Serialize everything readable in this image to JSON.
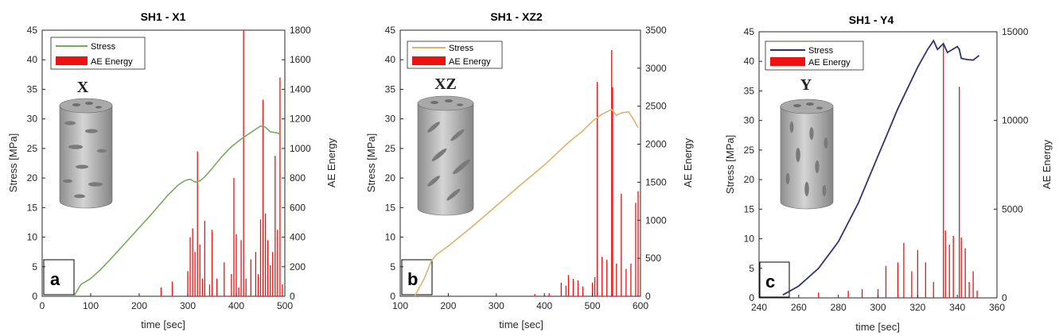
{
  "chart_data": [
    {
      "type": "line",
      "title": "SH1 - X1",
      "xlabel": "time [sec]",
      "ylabel": "Stress [MPa]",
      "y2label": "AE Energy",
      "xlim": [
        0,
        500
      ],
      "ylim": [
        0,
        45
      ],
      "y2lim": [
        0,
        1800
      ],
      "xticks": [
        "0",
        "100",
        "200",
        "300",
        "400",
        "500"
      ],
      "yticks": [
        "0",
        "5",
        "10",
        "15",
        "20",
        "25",
        "30",
        "35",
        "40",
        "45"
      ],
      "y2ticks": [
        "0",
        "200",
        "400",
        "600",
        "800",
        "1000",
        "1200",
        "1400",
        "1600",
        "1800"
      ],
      "legend": [
        "Stress",
        "AE Energy"
      ],
      "legend_position": "top-left",
      "panel_label": "a",
      "specimen_label": "X",
      "stress_color": "#77ac5c",
      "stress": {
        "x": [
          65,
          80,
          100,
          120,
          140,
          160,
          180,
          200,
          220,
          240,
          260,
          280,
          295,
          305,
          315,
          325,
          335,
          350,
          370,
          390,
          410,
          430,
          450,
          460,
          470,
          480,
          490
        ],
        "y": [
          0,
          2,
          3,
          4.5,
          6.2,
          8,
          9.8,
          11.6,
          13.4,
          15.3,
          17.2,
          18.8,
          19.6,
          19.8,
          19.3,
          19.5,
          20.2,
          21.6,
          23.6,
          25.3,
          26.6,
          27.7,
          28.8,
          28.6,
          27.8,
          27.7,
          27.5
        ]
      },
      "ae": {
        "x": [
          245,
          268,
          300,
          305,
          310,
          315,
          320,
          325,
          330,
          335,
          345,
          350,
          360,
          375,
          390,
          395,
          400,
          405,
          410,
          415,
          420,
          430,
          440,
          445,
          450,
          455,
          460,
          465,
          470,
          475,
          480,
          485,
          490,
          495
        ],
        "y": [
          60,
          100,
          170,
          400,
          460,
          300,
          980,
          350,
          120,
          510,
          80,
          450,
          120,
          230,
          150,
          800,
          420,
          60,
          380,
          1800,
          120,
          250,
          300,
          150,
          520,
          1330,
          560,
          380,
          210,
          300,
          950,
          450,
          1480,
          80
        ]
      }
    },
    {
      "type": "line",
      "title": "SH1 - XZ2",
      "xlabel": "time [sec]",
      "ylabel": "Stress [MPa]",
      "y2label": "AE Energy",
      "xlim": [
        100,
        600
      ],
      "ylim": [
        0,
        45
      ],
      "y2lim": [
        0,
        3500
      ],
      "xticks": [
        "100",
        "200",
        "300",
        "400",
        "500",
        "600"
      ],
      "yticks": [
        "0",
        "5",
        "10",
        "15",
        "20",
        "25",
        "30",
        "35",
        "40",
        "45"
      ],
      "y2ticks": [
        "0",
        "500",
        "1000",
        "1500",
        "2000",
        "2500",
        "3000",
        "3500"
      ],
      "legend": [
        "Stress",
        "AE Energy"
      ],
      "legend_position": "top-left",
      "panel_label": "b",
      "specimen_label": "XZ",
      "stress_color": "#ddb26a",
      "stress": {
        "x": [
          130,
          150,
          165,
          175,
          200,
          250,
          300,
          350,
          400,
          450,
          480,
          500,
          520,
          540,
          550,
          560,
          575,
          585,
          595
        ],
        "y": [
          0,
          3,
          6,
          7,
          8.5,
          11.8,
          15.3,
          18.8,
          22.2,
          26,
          28,
          29.6,
          30.8,
          31.6,
          30.6,
          31.0,
          31.2,
          30.0,
          28.5
        ]
      },
      "ae": {
        "x": [
          380,
          410,
          435,
          445,
          450,
          460,
          470,
          480,
          500,
          505,
          510,
          520,
          530,
          540,
          542,
          550,
          560,
          570,
          580,
          590,
          595
        ],
        "y": [
          30,
          40,
          180,
          140,
          280,
          230,
          210,
          130,
          180,
          250,
          2820,
          520,
          480,
          3240,
          2750,
          430,
          1350,
          360,
          430,
          1230,
          1380
        ]
      }
    },
    {
      "type": "line",
      "title": "SH1 - Y4",
      "xlabel": "time [sec]",
      "ylabel": "Stress [MPa]",
      "y2label": "AE Energy",
      "xlim": [
        240,
        360
      ],
      "ylim": [
        0,
        45
      ],
      "y2lim": [
        0,
        15000
      ],
      "xticks": [
        "240",
        "260",
        "280",
        "300",
        "320",
        "340",
        "360"
      ],
      "yticks": [
        "0",
        "5",
        "10",
        "15",
        "20",
        "25",
        "30",
        "35",
        "40",
        "45"
      ],
      "y2ticks": [
        "0",
        "5000",
        "10000",
        "15000"
      ],
      "legend": [
        "Stress",
        "AE Energy"
      ],
      "legend_position": "top-left",
      "panel_label": "c",
      "specimen_label": "Y",
      "stress_color": "#2f3471",
      "stress": {
        "x": [
          252,
          260,
          270,
          280,
          290,
          300,
          305,
          310,
          315,
          320,
          325,
          328,
          330,
          333,
          335,
          340,
          341,
          342,
          345,
          348,
          351
        ],
        "y": [
          0.5,
          2,
          5,
          9.5,
          16,
          24,
          28,
          32,
          35.5,
          39,
          42,
          43.5,
          42,
          43,
          41.5,
          42.5,
          42,
          40.5,
          40.3,
          40.2,
          41
        ]
      },
      "ae": {
        "x": [
          270,
          285,
          292,
          300,
          304,
          310,
          313,
          317,
          320,
          324,
          328,
          333,
          334,
          336,
          338,
          341,
          342,
          344,
          346,
          348,
          350
        ],
        "y": [
          300,
          400,
          500,
          500,
          1800,
          2000,
          3100,
          1500,
          2700,
          2000,
          900,
          14300,
          3800,
          3000,
          3500,
          11900,
          3400,
          2800,
          900,
          1500,
          400
        ]
      }
    }
  ]
}
